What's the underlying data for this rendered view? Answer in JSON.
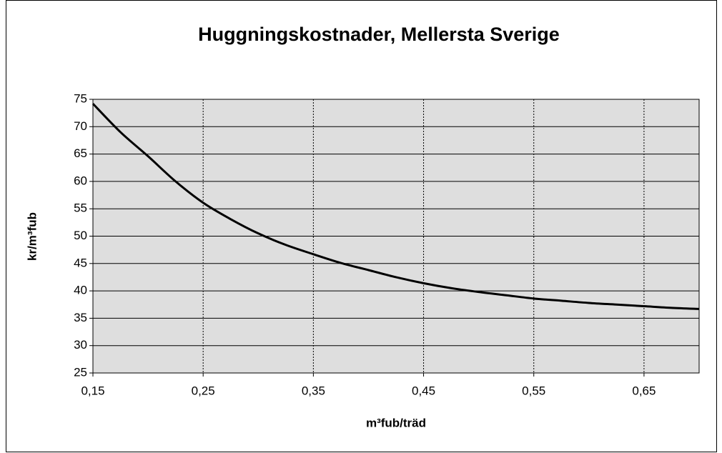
{
  "chart_data": {
    "type": "line",
    "title": "Huggningskostnader,  Mellersta Sverige",
    "x_label": "m³fub/träd",
    "y_label": "kr/m³fub",
    "x": [
      0.15,
      0.175,
      0.2,
      0.225,
      0.25,
      0.275,
      0.3,
      0.325,
      0.35,
      0.375,
      0.4,
      0.425,
      0.45,
      0.475,
      0.5,
      0.525,
      0.55,
      0.575,
      0.6,
      0.625,
      0.65,
      0.675,
      0.7
    ],
    "series": [
      {
        "color": "#000000",
        "values": [
          74.2,
          69.0,
          64.6,
          60.0,
          56.1,
          53.1,
          50.5,
          48.4,
          46.7,
          45.1,
          43.8,
          42.5,
          41.4,
          40.5,
          39.8,
          39.2,
          38.6,
          38.2,
          37.8,
          37.5,
          37.2,
          36.9,
          36.7
        ]
      }
    ],
    "xlim": [
      0.15,
      0.7
    ],
    "xticks": [
      {
        "value": 0.15,
        "label": "0,15"
      },
      {
        "value": 0.25,
        "label": "0,25"
      },
      {
        "value": 0.35,
        "label": "0,35"
      },
      {
        "value": 0.45,
        "label": "0,45"
      },
      {
        "value": 0.55,
        "label": "0,55"
      },
      {
        "value": 0.65,
        "label": "0,65"
      }
    ],
    "ylim": [
      25,
      75
    ],
    "yticks": [
      25,
      30,
      35,
      40,
      45,
      50,
      55,
      60,
      65,
      70,
      75
    ],
    "grid": true
  }
}
